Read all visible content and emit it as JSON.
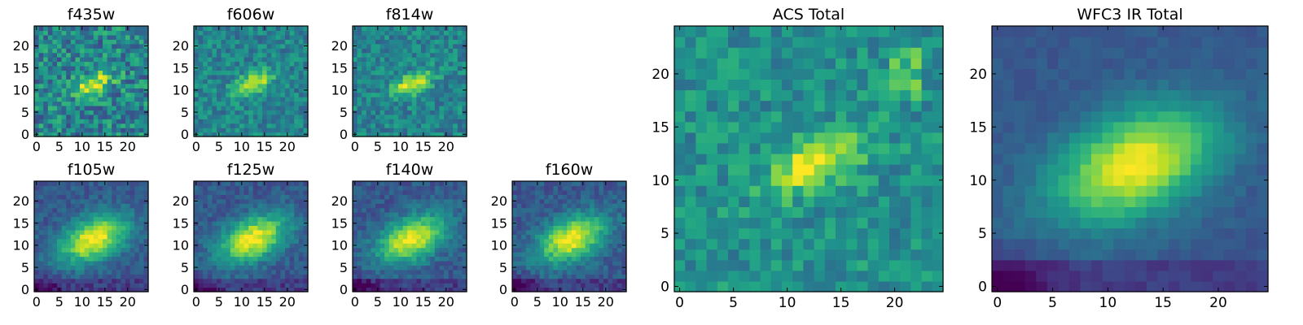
{
  "chart_data": [
    {
      "type": "heatmap",
      "title": "f435w",
      "xlabel": "",
      "ylabel": "",
      "xlim": [
        0,
        24
      ],
      "ylim": [
        0,
        24
      ],
      "xticks": [
        0,
        5,
        10,
        15,
        20
      ],
      "yticks": [
        0,
        5,
        10,
        15,
        20
      ],
      "colormap": "viridis",
      "grid": false
    },
    {
      "type": "heatmap",
      "title": "f606w",
      "xlabel": "",
      "ylabel": "",
      "xlim": [
        0,
        24
      ],
      "ylim": [
        0,
        24
      ],
      "xticks": [
        0,
        5,
        10,
        15,
        20
      ],
      "yticks": [
        0,
        5,
        10,
        15,
        20
      ],
      "colormap": "viridis",
      "grid": false
    },
    {
      "type": "heatmap",
      "title": "f814w",
      "xlabel": "",
      "ylabel": "",
      "xlim": [
        0,
        24
      ],
      "ylim": [
        0,
        24
      ],
      "xticks": [
        0,
        5,
        10,
        15,
        20
      ],
      "yticks": [
        0,
        5,
        10,
        15,
        20
      ],
      "colormap": "viridis",
      "grid": false
    },
    {
      "type": "heatmap",
      "title": "f105w",
      "xlabel": "",
      "ylabel": "",
      "xlim": [
        0,
        24
      ],
      "ylim": [
        0,
        24
      ],
      "xticks": [
        0,
        5,
        10,
        15,
        20
      ],
      "yticks": [
        0,
        5,
        10,
        15,
        20
      ],
      "colormap": "viridis",
      "grid": false
    },
    {
      "type": "heatmap",
      "title": "f125w",
      "xlabel": "",
      "ylabel": "",
      "xlim": [
        0,
        24
      ],
      "ylim": [
        0,
        24
      ],
      "xticks": [
        0,
        5,
        10,
        15,
        20
      ],
      "yticks": [
        0,
        5,
        10,
        15,
        20
      ],
      "colormap": "viridis",
      "grid": false
    },
    {
      "type": "heatmap",
      "title": "f140w",
      "xlabel": "",
      "ylabel": "",
      "xlim": [
        0,
        24
      ],
      "ylim": [
        0,
        24
      ],
      "xticks": [
        0,
        5,
        10,
        15,
        20
      ],
      "yticks": [
        0,
        5,
        10,
        15,
        20
      ],
      "colormap": "viridis",
      "grid": false
    },
    {
      "type": "heatmap",
      "title": "f160w",
      "xlabel": "",
      "ylabel": "",
      "xlim": [
        0,
        24
      ],
      "ylim": [
        0,
        24
      ],
      "xticks": [
        0,
        5,
        10,
        15,
        20
      ],
      "yticks": [
        0,
        5,
        10,
        15,
        20
      ],
      "colormap": "viridis",
      "grid": false
    },
    {
      "type": "heatmap",
      "title": "ACS Total",
      "xlabel": "",
      "ylabel": "",
      "xlim": [
        0,
        24
      ],
      "ylim": [
        0,
        24
      ],
      "xticks": [
        0,
        5,
        10,
        15,
        20
      ],
      "yticks": [
        0,
        5,
        10,
        15,
        20
      ],
      "colormap": "viridis",
      "grid": false
    },
    {
      "type": "heatmap",
      "title": "WFC3 IR Total",
      "xlabel": "",
      "ylabel": "",
      "xlim": [
        0,
        24
      ],
      "ylim": [
        0,
        24
      ],
      "xticks": [
        0,
        5,
        10,
        15,
        20
      ],
      "yticks": [
        0,
        5,
        10,
        15,
        20
      ],
      "colormap": "viridis",
      "grid": false
    }
  ]
}
